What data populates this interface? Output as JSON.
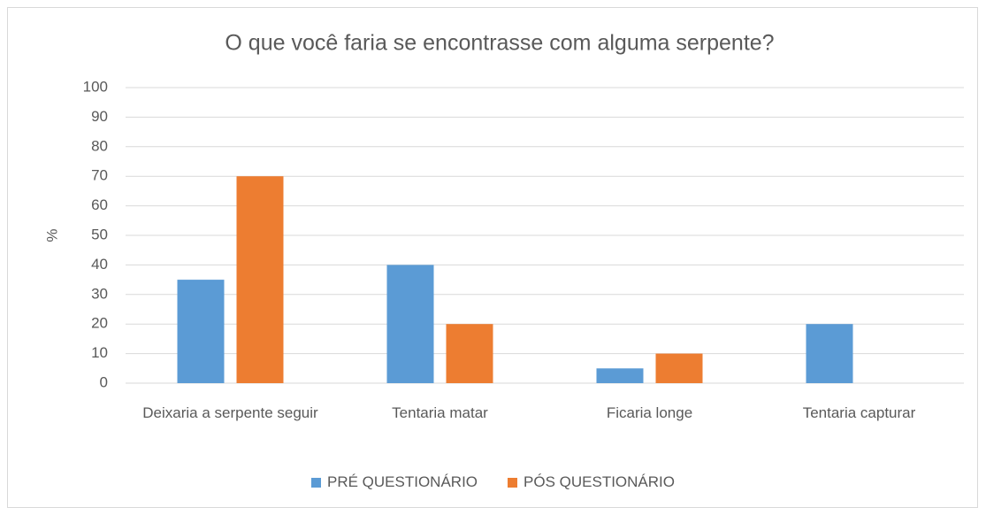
{
  "chart_data": {
    "type": "bar",
    "title": "O que você faria se encontrasse com alguma serpente?",
    "y_label": "%",
    "categories": [
      "Deixaria a serpente seguir",
      "Tentaria matar",
      "Ficaria longe",
      "Tentaria capturar"
    ],
    "series": [
      {
        "name": "PRÉ QUESTIONÁRIO",
        "color": "#5b9bd5",
        "values": [
          35,
          40,
          5,
          20
        ]
      },
      {
        "name": "PÓS QUESTIONÁRIO",
        "color": "#ed7d31",
        "values": [
          70,
          20,
          10,
          0
        ]
      }
    ],
    "ylim": [
      0,
      100
    ],
    "yticks": [
      0,
      10,
      20,
      30,
      40,
      50,
      60,
      70,
      80,
      90,
      100
    ],
    "grid": true,
    "legend": "bottom"
  }
}
